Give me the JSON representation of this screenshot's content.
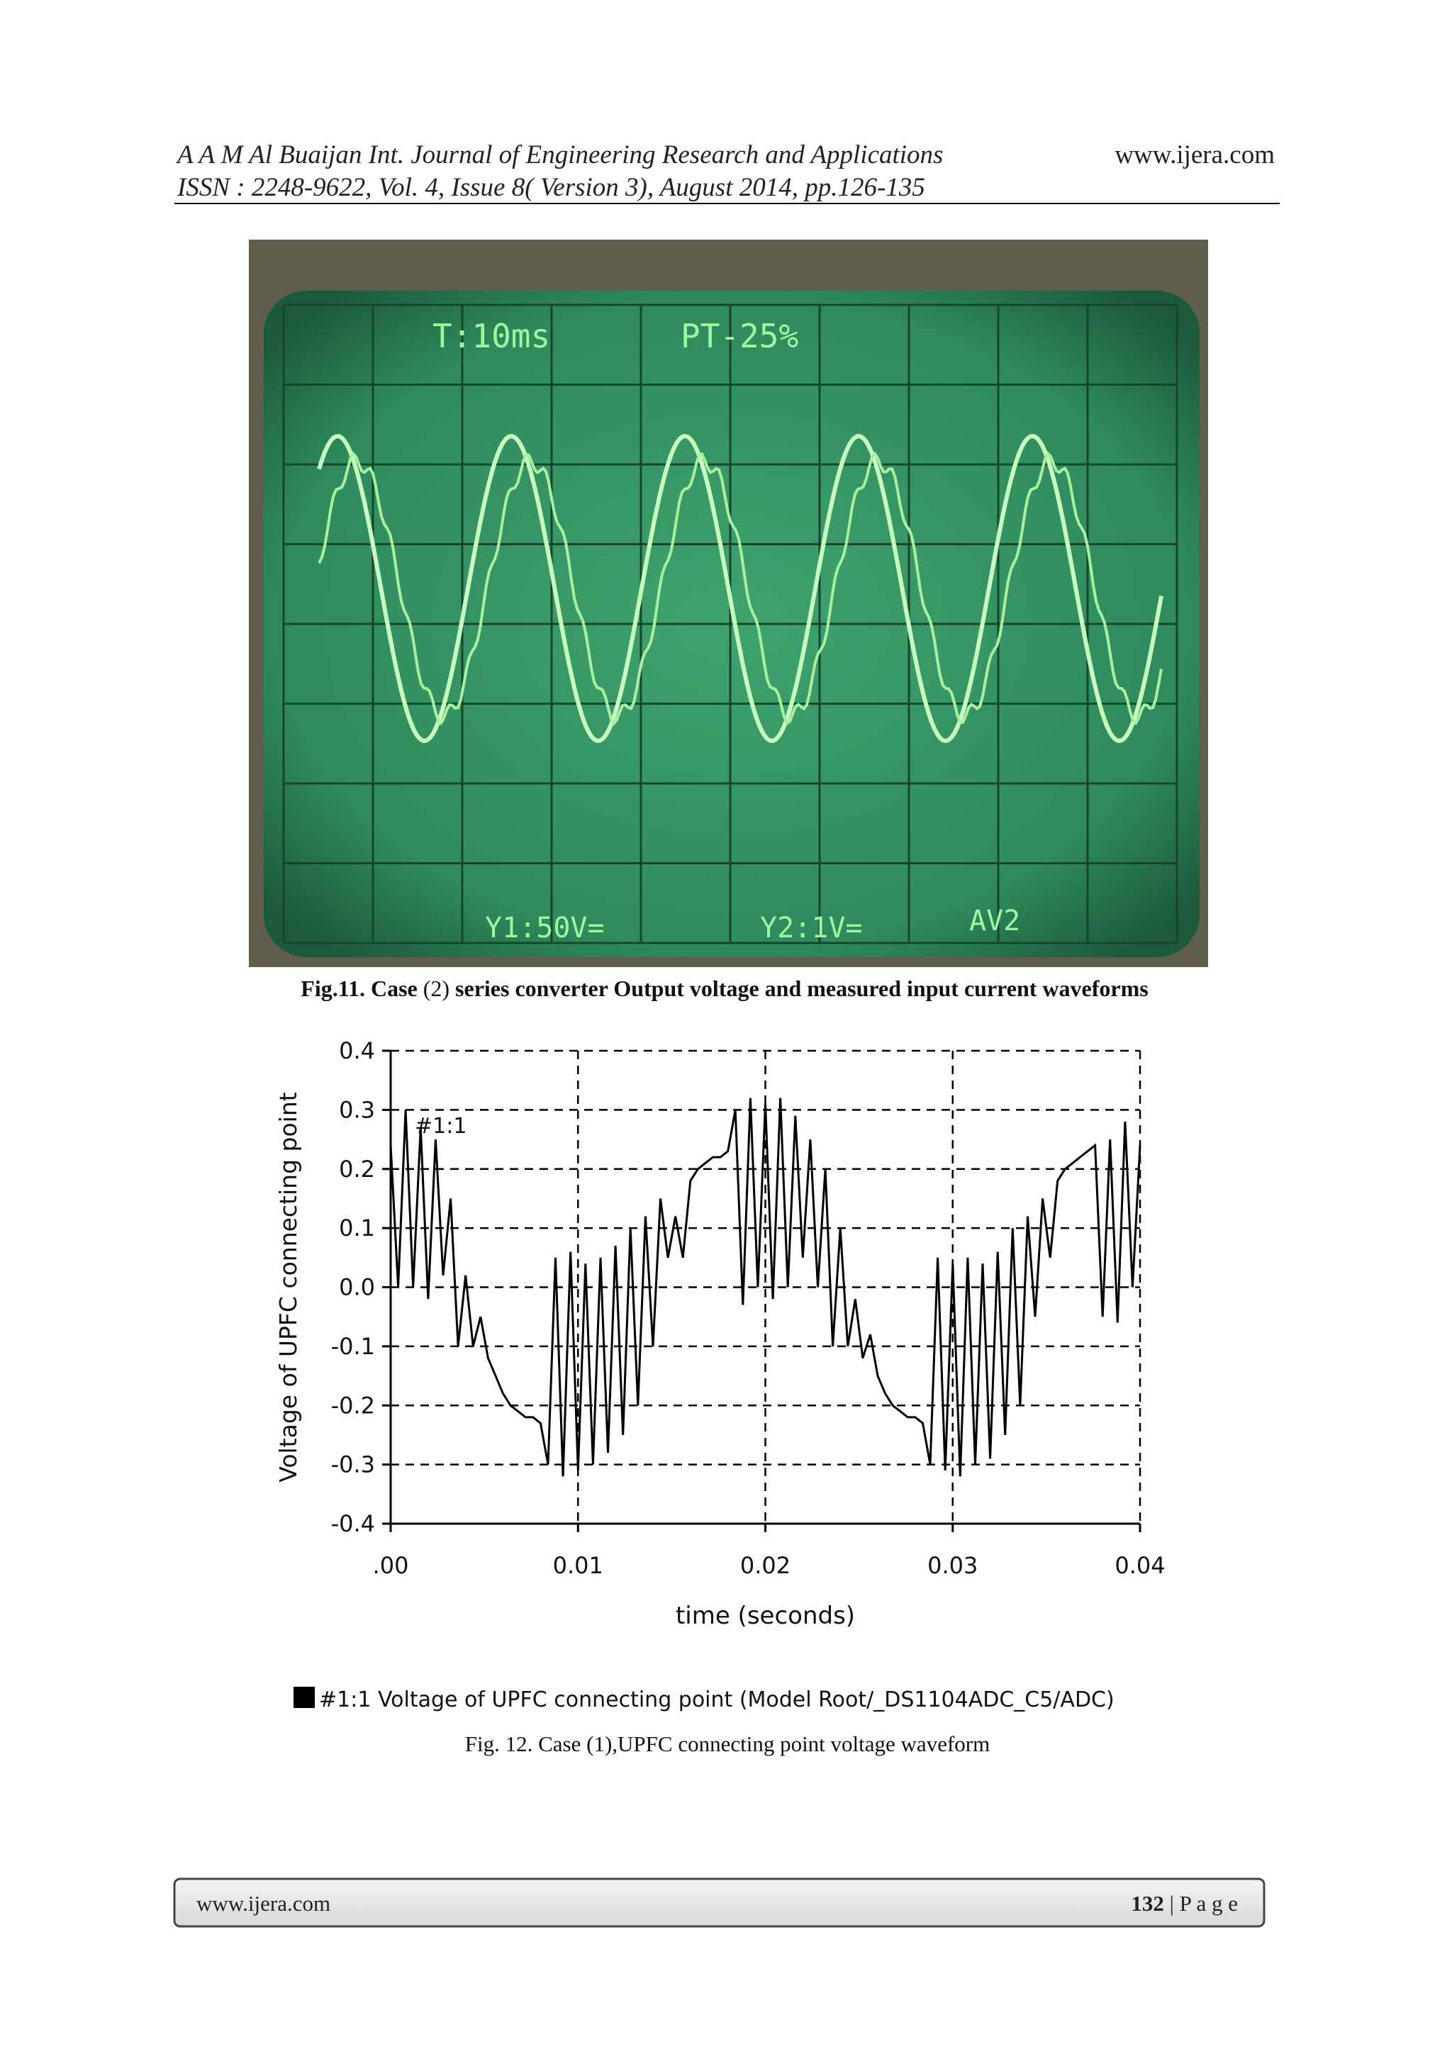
{
  "header": {
    "left_line1": "A A M Al Buaijan Int. Journal of Engineering Research and Applications",
    "left_line2": "ISSN : 2248-9622, Vol. 4, Issue 8( Version 3), August 2014, pp.126-135",
    "right": "www.ijera.com"
  },
  "figure11": {
    "screen_labels": [
      "T:10ms",
      "PT-25%",
      "Y1:50V=",
      "Y2:1V=",
      "AV2"
    ],
    "caption_lead": "Fig.11. Case ",
    "caption_num": "(2)",
    "caption_rest": " series converter Output voltage and measured input current waveforms"
  },
  "chart_data": {
    "type": "line",
    "y_label": "Voltage of UPFC connecting point",
    "x_label": "time (seconds)",
    "annotation": "#1:1",
    "x": [
      0,
      0.0004,
      0.0008,
      0.0012,
      0.0016,
      0.002,
      0.0024,
      0.0028,
      0.0032,
      0.0036,
      0.004,
      0.0044,
      0.0048,
      0.0052,
      0.0056,
      0.006,
      0.0064,
      0.0068,
      0.0072,
      0.0076,
      0.008,
      0.0084,
      0.0088,
      0.0092,
      0.0096,
      0.01,
      0.0104,
      0.0108,
      0.0112,
      0.0116,
      0.012,
      0.0124,
      0.0128,
      0.0132,
      0.0136,
      0.014,
      0.0144,
      0.0148,
      0.0152,
      0.0156,
      0.016,
      0.0164,
      0.0168,
      0.0172,
      0.0176,
      0.018,
      0.0184,
      0.0188,
      0.0192,
      0.0196,
      0.02,
      0.0204,
      0.0208,
      0.0212,
      0.0216,
      0.022,
      0.0224,
      0.0228,
      0.0232,
      0.0236,
      0.024,
      0.0244,
      0.0248,
      0.0252,
      0.0256,
      0.026,
      0.0264,
      0.0268,
      0.0272,
      0.0276,
      0.028,
      0.0284,
      0.0288,
      0.0292,
      0.0296,
      0.03,
      0.0304,
      0.0308,
      0.0312,
      0.0316,
      0.032,
      0.0324,
      0.0328,
      0.0332,
      0.0336,
      0.034,
      0.0344,
      0.0348,
      0.0352,
      0.0356,
      0.036,
      0.0364,
      0.0368,
      0.0372,
      0.0376,
      0.038,
      0.0384,
      0.0388,
      0.0392,
      0.0396,
      0.04
    ],
    "series": [
      {
        "name": "#1:1 Voltage of UPFC connecting point (Model Root/_DS1104ADC_C5/ADC)",
        "color": "#000000",
        "values": [
          0.24,
          0.0,
          0.3,
          0.0,
          0.27,
          -0.02,
          0.25,
          0.02,
          0.15,
          -0.1,
          0.02,
          -0.1,
          -0.05,
          -0.12,
          -0.15,
          -0.18,
          -0.2,
          -0.21,
          -0.22,
          -0.22,
          -0.23,
          -0.3,
          0.05,
          -0.32,
          0.06,
          -0.31,
          0.04,
          -0.3,
          0.05,
          -0.28,
          0.07,
          -0.25,
          0.1,
          -0.2,
          0.12,
          -0.1,
          0.15,
          0.05,
          0.12,
          0.05,
          0.18,
          0.2,
          0.21,
          0.22,
          0.22,
          0.23,
          0.3,
          -0.03,
          0.32,
          0.0,
          0.31,
          -0.02,
          0.32,
          0.0,
          0.29,
          0.05,
          0.25,
          0.0,
          0.2,
          -0.1,
          0.1,
          -0.1,
          -0.02,
          -0.12,
          -0.08,
          -0.15,
          -0.18,
          -0.2,
          -0.21,
          -0.22,
          -0.22,
          -0.23,
          -0.3,
          0.05,
          -0.31,
          0.04,
          -0.32,
          0.05,
          -0.3,
          0.04,
          -0.29,
          0.06,
          -0.25,
          0.1,
          -0.2,
          0.12,
          -0.05,
          0.15,
          0.05,
          0.18,
          0.2,
          0.21,
          0.22,
          0.23,
          0.24,
          -0.05,
          0.25,
          -0.06,
          0.28,
          0.0,
          0.24
        ]
      }
    ],
    "xlim": [
      0,
      0.04
    ],
    "ylim": [
      -0.4,
      0.4
    ],
    "xticks": [
      {
        "value": 0,
        "label": ".00"
      },
      0.01,
      0.02,
      0.03,
      0.04
    ],
    "yticks": [
      0.4,
      0.3,
      0.2,
      0.1,
      {
        "value": 0,
        "label": "0.0"
      },
      -0.1,
      -0.2,
      -0.3,
      -0.4
    ],
    "grid": true
  },
  "figure12_caption": "Fig. 12. Case (1),UPFC connecting point voltage waveform",
  "footer": {
    "left": "www.ijera.com",
    "page": "132",
    "suffix": " | P a g e"
  }
}
